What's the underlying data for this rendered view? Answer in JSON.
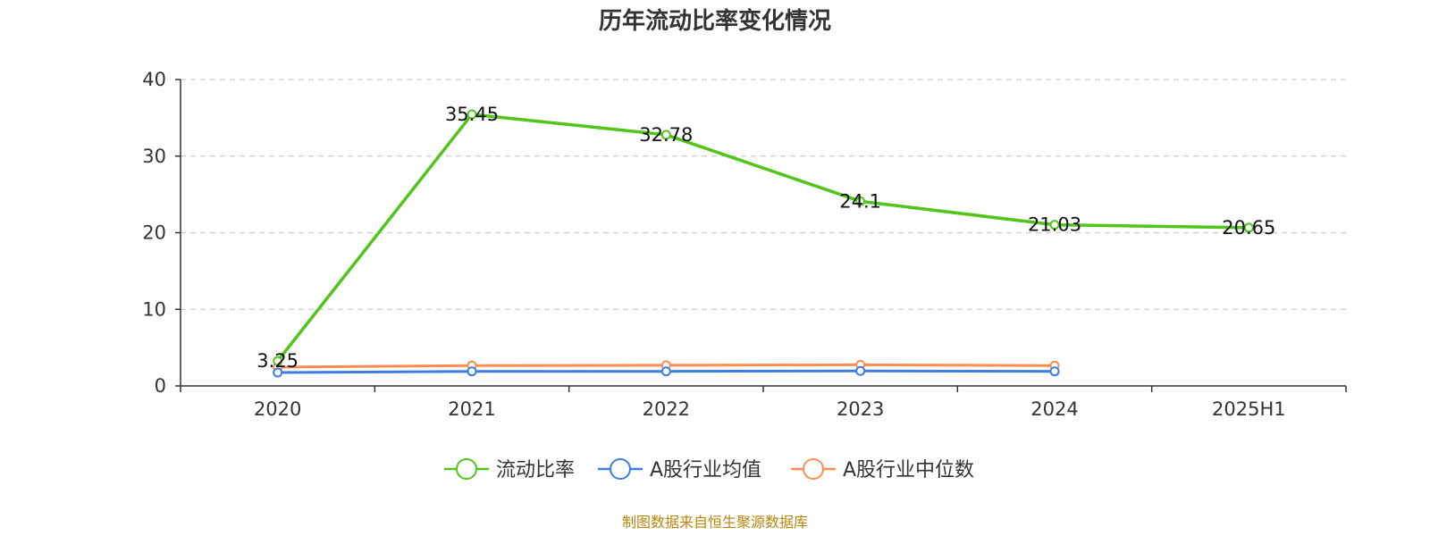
{
  "chart_data": {
    "type": "line",
    "title": "历年流动比率变化情况",
    "categories": [
      "2020",
      "2021",
      "2022",
      "2023",
      "2024",
      "2025H1"
    ],
    "ylim": [
      0,
      40
    ],
    "yticks": [
      0,
      10,
      20,
      30,
      40
    ],
    "grid": true,
    "legend_position": "bottom-center",
    "series": [
      {
        "name": "流动比率",
        "color": "#52c41a",
        "values": [
          3.25,
          35.45,
          32.78,
          24.1,
          21.03,
          20.65
        ],
        "labels": [
          "3.25",
          "35.45",
          "32.78",
          "24.1",
          "21.03",
          "20.65"
        ]
      },
      {
        "name": "A股行业均值",
        "color": "#3d7de0",
        "values": [
          1.75,
          1.9,
          1.9,
          1.95,
          1.9,
          null
        ]
      },
      {
        "name": "A股行业中位数",
        "color": "#ff8c50",
        "values": [
          2.45,
          2.65,
          2.7,
          2.75,
          2.65,
          null
        ]
      }
    ]
  },
  "source": {
    "text": "制图数据来自恒生聚源数据库",
    "color": "#b8860b"
  }
}
